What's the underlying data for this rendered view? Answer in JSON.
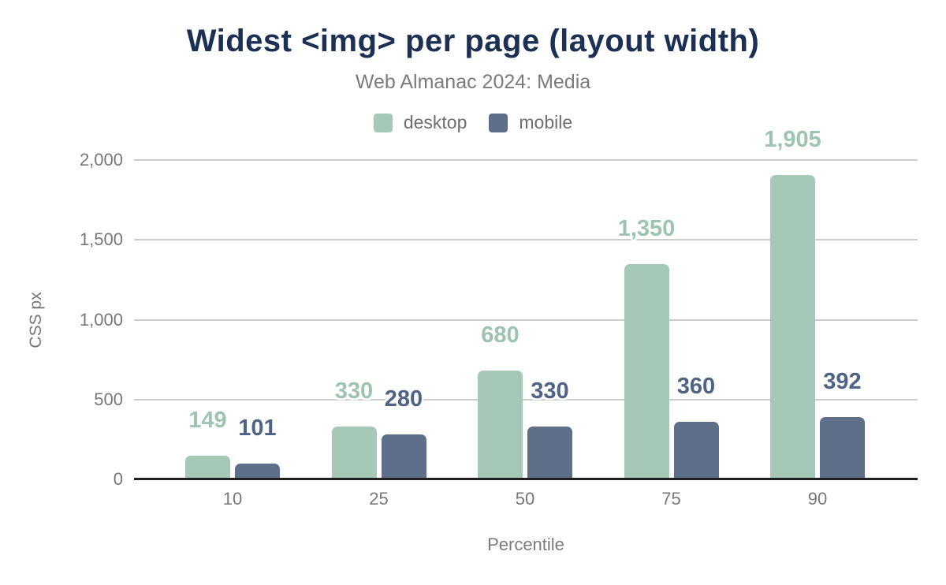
{
  "title": "Widest <img> per page (layout width)",
  "subtitle": "Web Almanac 2024: Media",
  "legend": [
    {
      "label": "desktop",
      "color": "#a6c9b7"
    },
    {
      "label": "mobile",
      "color": "#5e7089"
    }
  ],
  "chart_data": {
    "type": "bar",
    "title": "Widest <img> per page (layout width)",
    "subtitle": "Web Almanac 2024: Media",
    "categories": [
      "10",
      "25",
      "50",
      "75",
      "90"
    ],
    "series": [
      {
        "name": "desktop",
        "color": "#a6c9b7",
        "label_color": "#9ec4b0",
        "values": [
          149,
          330,
          680,
          1350,
          1905
        ],
        "labels": [
          "149",
          "330",
          "680",
          "1,350",
          "1,905"
        ]
      },
      {
        "name": "mobile",
        "color": "#5e7089",
        "label_color": "#4f6385",
        "values": [
          101,
          280,
          330,
          360,
          392
        ],
        "labels": [
          "101",
          "280",
          "330",
          "360",
          "392"
        ]
      }
    ],
    "xlabel": "Percentile",
    "ylabel": "CSS px",
    "ylim": [
      0,
      2000
    ],
    "yticks": [
      {
        "value": 0,
        "label": "0"
      },
      {
        "value": 500,
        "label": "500"
      },
      {
        "value": 1000,
        "label": "1,000"
      },
      {
        "value": 1500,
        "label": "1,500"
      },
      {
        "value": 2000,
        "label": "2,000"
      }
    ],
    "grid": true,
    "legend_position": "top"
  },
  "colors": {
    "title": "#1c3054",
    "subtitle": "#7b7b7b",
    "axis_text": "#75787b",
    "gridline": "#cccccc",
    "baseline": "#212121"
  }
}
